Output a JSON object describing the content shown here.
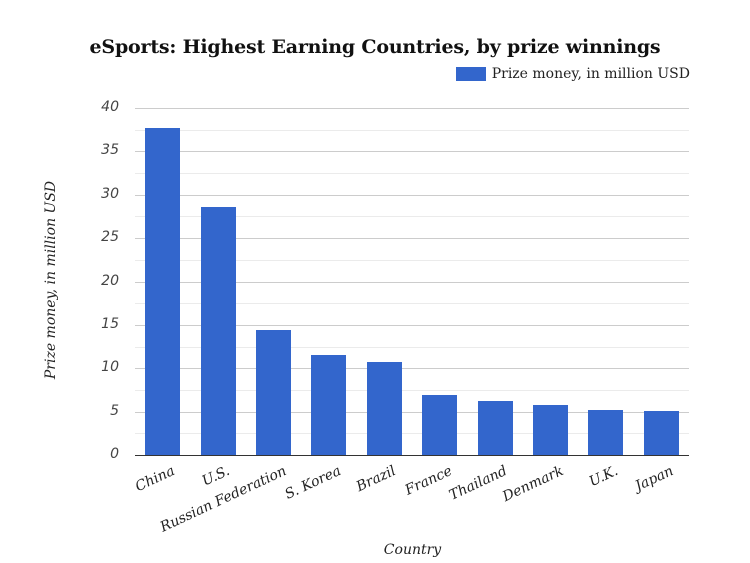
{
  "chart_data": {
    "type": "bar",
    "title": "eSports: Highest Earning Countries, by prize winnings",
    "xlabel": "Country",
    "ylabel": "Prize money, in million USD",
    "categories": [
      "China",
      "U.S.",
      "Russian Federation",
      "S. Korea",
      "Brazil",
      "France",
      "Thailand",
      "Denmark",
      "U.K.",
      "Japan"
    ],
    "series": [
      {
        "name": "Prize money, in million USD",
        "color": "#3366cc",
        "values": [
          37.7,
          28.6,
          14.4,
          11.5,
          10.7,
          6.9,
          6.2,
          5.8,
          5.2,
          5.1
        ]
      }
    ],
    "ylim": [
      0,
      40
    ],
    "yticks": [
      0,
      5,
      10,
      15,
      20,
      25,
      30,
      35,
      40
    ],
    "minor_gridlines": true,
    "grid": true,
    "legend_position": "top-right"
  },
  "colors": {
    "bar": "#3366cc",
    "major_grid": "#cccccc",
    "minor_grid": "#ebebeb",
    "axis": "#333333"
  }
}
